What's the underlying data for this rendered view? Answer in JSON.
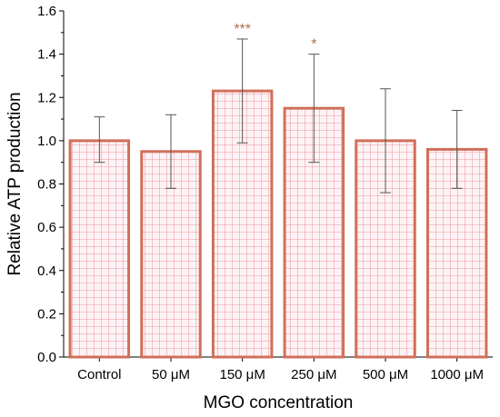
{
  "chart_data": {
    "type": "bar",
    "categories": [
      "Control",
      "50 μM",
      "150 μM",
      "250 μM",
      "500 μM",
      "1000 μM"
    ],
    "values": [
      1.0,
      0.95,
      1.23,
      1.15,
      1.0,
      0.96
    ],
    "error_upper": [
      1.11,
      1.12,
      1.47,
      1.4,
      1.24,
      1.14
    ],
    "error_lower": [
      0.9,
      0.78,
      0.99,
      0.9,
      0.76,
      0.78
    ],
    "significance": [
      "",
      "",
      "***",
      "*",
      "",
      ""
    ],
    "xlabel": "MGO concentration",
    "ylabel": "Relative ATP production",
    "ylim": [
      0.0,
      1.6
    ],
    "yticks": [
      "0.0",
      "0.2",
      "0.4",
      "0.6",
      "0.8",
      "1.0",
      "1.2",
      "1.4",
      "1.6"
    ],
    "grid": false,
    "colors": {
      "bar_edge": "#d0705a",
      "bar_fill": "#fdf3f6",
      "hatch": "#e67a84",
      "significance": "#b0704a"
    }
  }
}
